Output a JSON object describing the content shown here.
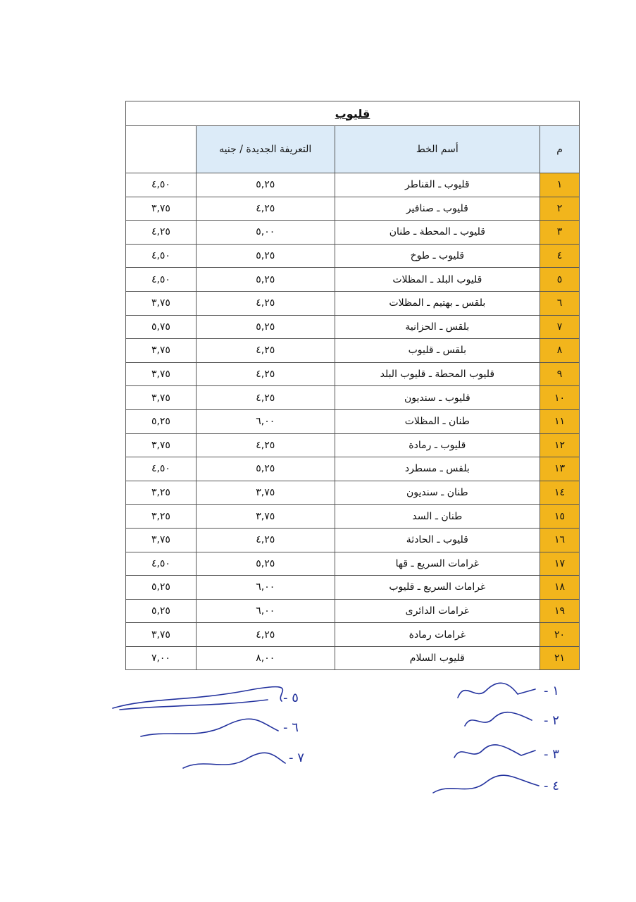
{
  "table": {
    "title": "قليوب",
    "headers": {
      "number": "م",
      "line_name": "أسم الخط",
      "new_fare": "التعريفة الجديدة / جنيه",
      "old_fare": ""
    },
    "rows": [
      {
        "n": "١",
        "name": "قليوب ـ القناطر",
        "new": "٥,٢٥",
        "old": "٤,٥٠"
      },
      {
        "n": "٢",
        "name": "قليوب ـ صنافير",
        "new": "٤,٢٥",
        "old": "٣,٧٥"
      },
      {
        "n": "٣",
        "name": "قليوب ـ المحطة ـ طنان",
        "new": "٥,٠٠",
        "old": "٤,٢٥"
      },
      {
        "n": "٤",
        "name": "قليوب ـ طوخ",
        "new": "٥,٢٥",
        "old": "٤,٥٠"
      },
      {
        "n": "٥",
        "name": "قليوب البلد ـ المظلات",
        "new": "٥,٢٥",
        "old": "٤,٥٠"
      },
      {
        "n": "٦",
        "name": "بلقس ـ بهتيم ـ المظلات",
        "new": "٤,٢٥",
        "old": "٣,٧٥"
      },
      {
        "n": "٧",
        "name": "بلقس ـ الحزانية",
        "new": "٥,٢٥",
        "old": "٥,٧٥"
      },
      {
        "n": "٨",
        "name": "بلقس ـ قليوب",
        "new": "٤,٢٥",
        "old": "٣,٧٥"
      },
      {
        "n": "٩",
        "name": "قليوب المحطة ـ قليوب البلد",
        "new": "٤,٢٥",
        "old": "٣,٧٥"
      },
      {
        "n": "١٠",
        "name": "قليوب ـ سنديون",
        "new": "٤,٢٥",
        "old": "٣,٧٥"
      },
      {
        "n": "١١",
        "name": "طنان ـ المظلات",
        "new": "٦,٠٠",
        "old": "٥,٢٥"
      },
      {
        "n": "١٢",
        "name": "قليوب ـ رمادة",
        "new": "٤,٢٥",
        "old": "٣,٧٥"
      },
      {
        "n": "١٣",
        "name": "بلقس ـ مسطرد",
        "new": "٥,٢٥",
        "old": "٤,٥٠"
      },
      {
        "n": "١٤",
        "name": "طنان ـ سنديون",
        "new": "٣,٧٥",
        "old": "٣,٢٥"
      },
      {
        "n": "١٥",
        "name": "طنان ـ السد",
        "new": "٣,٧٥",
        "old": "٣,٢٥"
      },
      {
        "n": "١٦",
        "name": "قليوب ـ الحادثة",
        "new": "٤,٢٥",
        "old": "٣,٧٥"
      },
      {
        "n": "١٧",
        "name": "غرامات السريع ـ قها",
        "new": "٥,٢٥",
        "old": "٤,٥٠"
      },
      {
        "n": "١٨",
        "name": "غرامات السريع ـ قليوب",
        "new": "٦,٠٠",
        "old": "٥,٢٥"
      },
      {
        "n": "١٩",
        "name": "غرامات الدائرى",
        "new": "٦,٠٠",
        "old": "٥,٢٥"
      },
      {
        "n": "٢٠",
        "name": "غرامات رمادة",
        "new": "٤,٢٥",
        "old": "٣,٧٥"
      },
      {
        "n": "٢١",
        "name": "قليوب السلام",
        "new": "٨,٠٠",
        "old": "٧,٠٠"
      }
    ]
  },
  "signatures": [
    {
      "n": "١ -"
    },
    {
      "n": "٢ -"
    },
    {
      "n": "٣ -"
    },
    {
      "n": "٤ -"
    },
    {
      "n": "٥ -"
    },
    {
      "n": "٦ -"
    },
    {
      "n": "٧ -"
    }
  ],
  "colors": {
    "number_column": "#f2b51c",
    "header_fill": "#dcebf8",
    "ink": "#23329e"
  }
}
